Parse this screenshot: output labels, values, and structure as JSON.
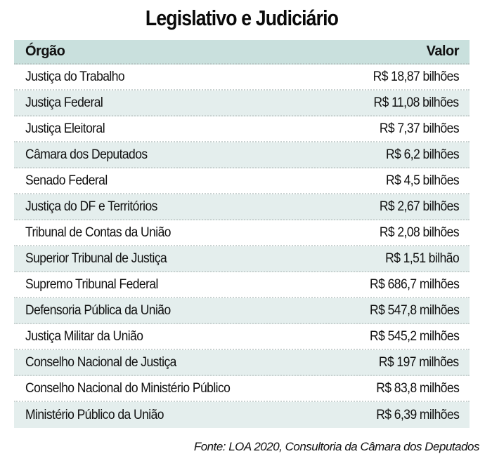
{
  "title": "Legislativo e Judiciário",
  "table": {
    "headers": {
      "org": "Órgão",
      "value": "Valor"
    },
    "rows": [
      {
        "org": "Justiça do Trabalho",
        "value": "R$ 18,87 bilhões"
      },
      {
        "org": "Justiça Federal",
        "value": "R$ 11,08 bilhões"
      },
      {
        "org": "Justiça Eleitoral",
        "value": "R$ 7,37 bilhões"
      },
      {
        "org": "Câmara dos Deputados",
        "value": "R$ 6,2 bilhões"
      },
      {
        "org": "Senado Federal",
        "value": "R$ 4,5 bilhões"
      },
      {
        "org": "Justiça do DF e Territórios",
        "value": "R$ 2,67 bilhões"
      },
      {
        "org": "Tribunal de Contas da União",
        "value": "R$ 2,08 bilhões"
      },
      {
        "org": "Superior Tribunal de Justiça",
        "value": "R$ 1,51 bilhão"
      },
      {
        "org": "Supremo Tribunal Federal",
        "value": "R$ 686,7 milhões"
      },
      {
        "org": "Defensoria Pública da União",
        "value": "R$ 547,8 milhões"
      },
      {
        "org": "Justiça Militar da União",
        "value": "R$ 545,2 milhões"
      },
      {
        "org": "Conselho Nacional de Justiça",
        "value": "R$ 197 milhões"
      },
      {
        "org": "Conselho Nacional do Ministério Público",
        "value": "R$ 83,8 milhões"
      },
      {
        "org": "Ministério Público da União",
        "value": "R$ 6,39 milhões"
      }
    ]
  },
  "source": "Fonte:  LOA 2020, Consultoria da Câmara dos Deputados",
  "colors": {
    "header_bg": "#c9e0dd",
    "stripe_bg": "#e4eeed",
    "text": "#111111"
  }
}
